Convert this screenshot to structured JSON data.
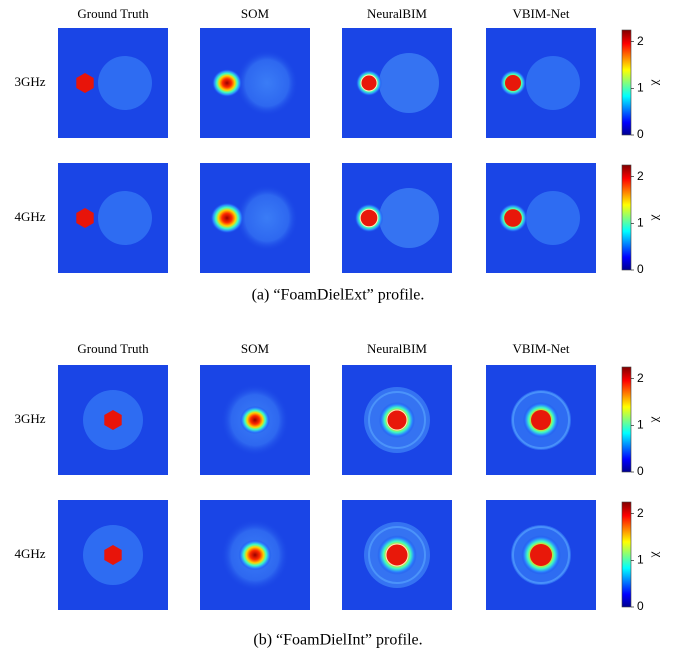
{
  "panels": [
    {
      "columns": [
        "Ground Truth",
        "SOM",
        "NeuralBIM",
        "VBIM-Net"
      ],
      "rows": [
        "3GHz",
        "4GHz"
      ],
      "colorbar": {
        "label": "χ",
        "ticks": [
          0,
          1,
          2
        ],
        "range": [
          0,
          2.25
        ]
      },
      "caption": "(a) “FoamDielExt” profile."
    },
    {
      "columns": [
        "Ground Truth",
        "SOM",
        "NeuralBIM",
        "VBIM-Net"
      ],
      "rows": [
        "3GHz",
        "4GHz"
      ],
      "colorbar": {
        "label": "χ",
        "ticks": [
          0,
          1,
          2
        ],
        "range": [
          0,
          2.25
        ]
      },
      "caption": "(b) “FoamDielInt” profile."
    }
  ]
}
